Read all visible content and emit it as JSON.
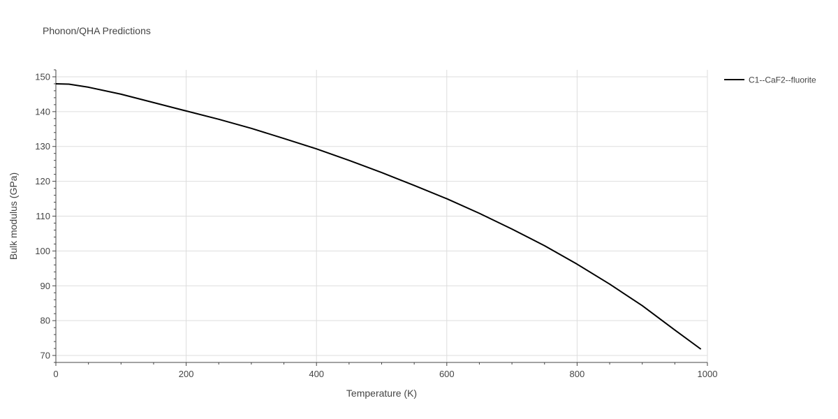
{
  "chart_data": {
    "type": "line",
    "title": "Phonon/QHA Predictions",
    "xlabel": "Temperature (K)",
    "ylabel": "Bulk modulus (GPa)",
    "xlim": [
      0,
      1000
    ],
    "ylim": [
      68,
      152
    ],
    "x_ticks": [
      0,
      200,
      400,
      600,
      800,
      1000
    ],
    "y_ticks": [
      70,
      80,
      90,
      100,
      110,
      120,
      130,
      140,
      150
    ],
    "grid": true,
    "legend_position": "top-right",
    "colors": {
      "line": "#000000",
      "grid": "#dddddd",
      "axis": "#444444"
    },
    "series": [
      {
        "name": "C1--CaF2--fluorite",
        "x": [
          0,
          20,
          50,
          100,
          150,
          200,
          250,
          300,
          350,
          400,
          450,
          500,
          550,
          600,
          650,
          700,
          750,
          800,
          850,
          900,
          950,
          990
        ],
        "y": [
          148,
          147.9,
          147.0,
          145.0,
          142.6,
          140.2,
          137.8,
          135.2,
          132.3,
          129.3,
          126.0,
          122.5,
          118.8,
          115.0,
          110.8,
          106.3,
          101.5,
          96.2,
          90.5,
          84.3,
          77.3,
          71.8
        ]
      }
    ]
  }
}
